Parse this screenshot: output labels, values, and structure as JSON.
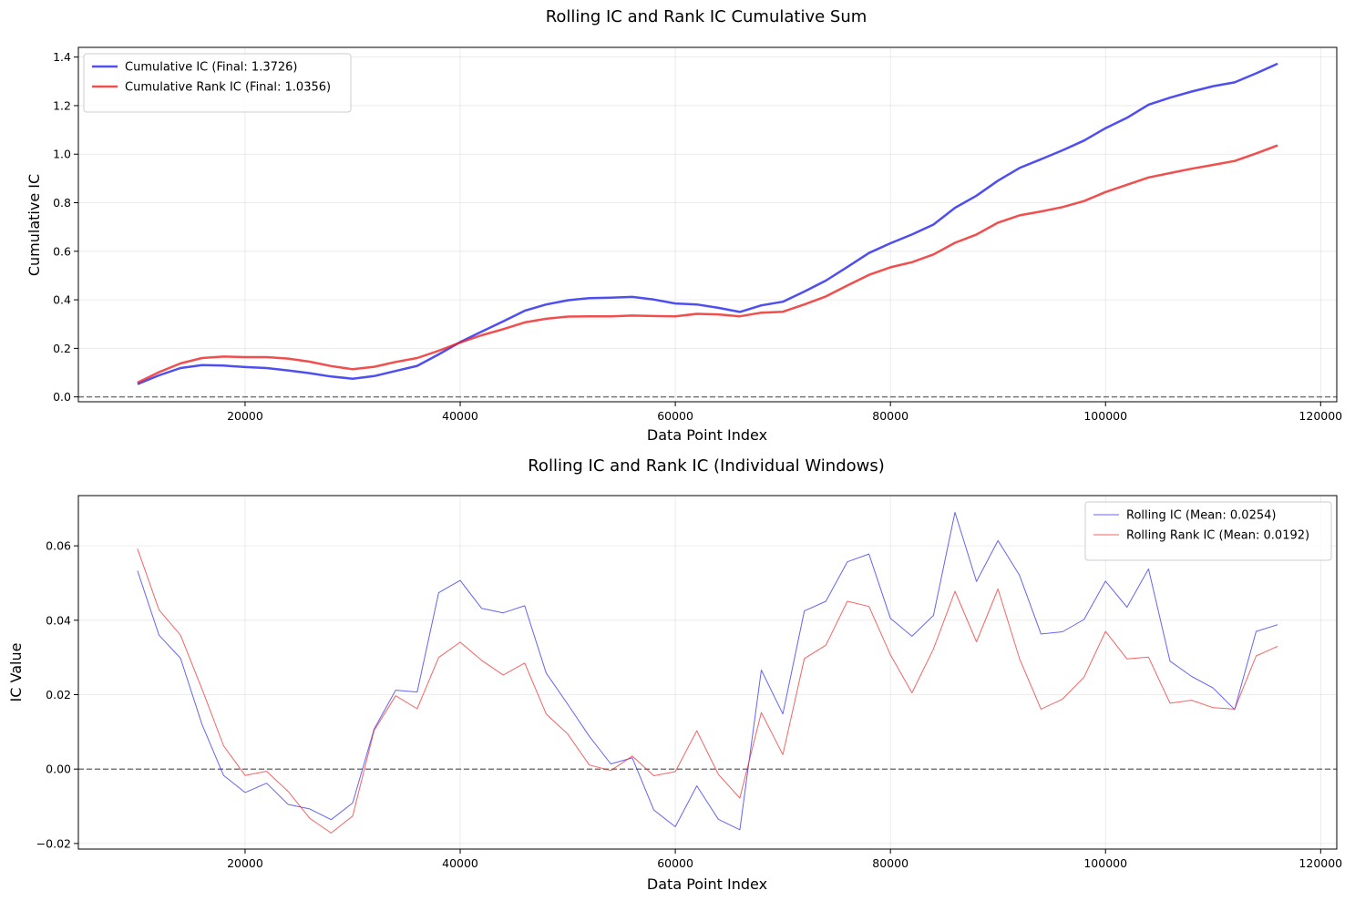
{
  "chart_data": [
    {
      "type": "line",
      "title": "Rolling IC and Rank IC Cumulative Sum",
      "xlabel": "Data Point Index",
      "ylabel": "Cumulative IC",
      "xlim": [
        4500,
        121500
      ],
      "ylim": [
        -0.02,
        1.44
      ],
      "xticks": [
        20000,
        40000,
        60000,
        80000,
        100000,
        120000
      ],
      "yticks": [
        0.0,
        0.2,
        0.4,
        0.6,
        0.8,
        1.0,
        1.2,
        1.4
      ],
      "ytick_decimals": 1,
      "grid": true,
      "legend_position": "top-left",
      "reference_line": 0,
      "x": [
        10000,
        12000,
        14000,
        16000,
        18000,
        20000,
        22000,
        24000,
        26000,
        28000,
        30000,
        32000,
        34000,
        36000,
        38000,
        40000,
        42000,
        44000,
        46000,
        48000,
        50000,
        52000,
        54000,
        56000,
        58000,
        60000,
        62000,
        64000,
        66000,
        68000,
        70000,
        72000,
        74000,
        76000,
        78000,
        80000,
        82000,
        84000,
        86000,
        88000,
        90000,
        92000,
        94000,
        96000,
        98000,
        100000,
        102000,
        104000,
        106000,
        108000,
        110000,
        112000,
        114000,
        116000
      ],
      "series": [
        {
          "name": "Cumulative IC (Final: 1.3726)",
          "color": "#2222ee",
          "values": [
            0.053,
            0.089,
            0.119,
            0.131,
            0.129,
            0.123,
            0.119,
            0.109,
            0.098,
            0.084,
            0.075,
            0.086,
            0.107,
            0.128,
            0.175,
            0.226,
            0.269,
            0.311,
            0.355,
            0.381,
            0.398,
            0.407,
            0.409,
            0.412,
            0.401,
            0.385,
            0.381,
            0.367,
            0.35,
            0.377,
            0.392,
            0.434,
            0.479,
            0.535,
            0.593,
            0.633,
            0.669,
            0.71,
            0.779,
            0.829,
            0.891,
            0.943,
            0.979,
            1.016,
            1.056,
            1.107,
            1.15,
            1.204,
            1.233,
            1.258,
            1.28,
            1.296,
            1.333,
            1.373
          ]
        },
        {
          "name": "Cumulative Rank IC (Final: 1.0356)",
          "color": "#ee2222",
          "values": [
            0.059,
            0.102,
            0.138,
            0.16,
            0.166,
            0.164,
            0.164,
            0.158,
            0.145,
            0.127,
            0.114,
            0.124,
            0.144,
            0.16,
            0.19,
            0.224,
            0.254,
            0.279,
            0.307,
            0.322,
            0.331,
            0.332,
            0.332,
            0.335,
            0.333,
            0.332,
            0.342,
            0.34,
            0.332,
            0.347,
            0.351,
            0.381,
            0.414,
            0.459,
            0.503,
            0.534,
            0.555,
            0.587,
            0.635,
            0.669,
            0.718,
            0.748,
            0.764,
            0.782,
            0.807,
            0.844,
            0.874,
            0.904,
            0.922,
            0.94,
            0.956,
            0.972,
            1.003,
            1.036
          ]
        }
      ]
    },
    {
      "type": "line",
      "title": "Rolling IC and Rank IC (Individual Windows)",
      "xlabel": "Data Point Index",
      "ylabel": "IC Value",
      "xlim": [
        4500,
        121500
      ],
      "ylim": [
        -0.0215,
        0.0735
      ],
      "xticks": [
        20000,
        40000,
        60000,
        80000,
        100000,
        120000
      ],
      "yticks": [
        -0.02,
        0.0,
        0.02,
        0.04,
        0.06
      ],
      "ytick_decimals": 2,
      "grid": true,
      "legend_position": "top-right",
      "reference_line": 0,
      "x": [
        10000,
        12000,
        14000,
        16000,
        18000,
        20000,
        22000,
        24000,
        26000,
        28000,
        30000,
        32000,
        34000,
        36000,
        38000,
        40000,
        42000,
        44000,
        46000,
        48000,
        50000,
        52000,
        54000,
        56000,
        58000,
        60000,
        62000,
        64000,
        66000,
        68000,
        70000,
        72000,
        74000,
        76000,
        78000,
        80000,
        82000,
        84000,
        86000,
        88000,
        90000,
        92000,
        94000,
        96000,
        98000,
        100000,
        102000,
        104000,
        106000,
        108000,
        110000,
        112000,
        114000,
        116000
      ],
      "series": [
        {
          "name": "Rolling IC (Mean: 0.0254)",
          "color": "#2222ee",
          "values": [
            0.0533,
            0.036,
            0.0298,
            0.012,
            -0.0017,
            -0.0063,
            -0.0038,
            -0.0095,
            -0.0107,
            -0.0136,
            -0.0091,
            0.0108,
            0.0212,
            0.0207,
            0.0474,
            0.0507,
            0.0432,
            0.042,
            0.0439,
            0.0258,
            0.0174,
            0.0088,
            0.0014,
            0.003,
            -0.011,
            -0.0155,
            -0.0045,
            -0.0135,
            -0.0163,
            0.0266,
            0.0148,
            0.0425,
            0.0451,
            0.0557,
            0.0578,
            0.0405,
            0.0357,
            0.0413,
            0.069,
            0.0504,
            0.0614,
            0.0521,
            0.0363,
            0.0369,
            0.0402,
            0.0505,
            0.0435,
            0.0538,
            0.029,
            0.0249,
            0.0218,
            0.016,
            0.037,
            0.0388
          ]
        },
        {
          "name": "Rolling Rank IC (Mean: 0.0192)",
          "color": "#ee2222",
          "values": [
            0.0592,
            0.0428,
            0.036,
            0.0215,
            0.0063,
            -0.0017,
            -0.0006,
            -0.006,
            -0.0132,
            -0.0172,
            -0.0126,
            0.0104,
            0.0197,
            0.0162,
            0.03,
            0.0341,
            0.0292,
            0.0253,
            0.0285,
            0.0148,
            0.0094,
            0.0011,
            -0.0004,
            0.0035,
            -0.0018,
            -0.0007,
            0.0103,
            -0.0014,
            -0.0078,
            0.0152,
            0.0039,
            0.0297,
            0.0333,
            0.0451,
            0.0437,
            0.0307,
            0.0205,
            0.0323,
            0.0478,
            0.0342,
            0.0484,
            0.0297,
            0.0161,
            0.0188,
            0.0247,
            0.037,
            0.0296,
            0.0301,
            0.0177,
            0.0185,
            0.0165,
            0.0161,
            0.0304,
            0.033
          ]
        }
      ]
    }
  ]
}
